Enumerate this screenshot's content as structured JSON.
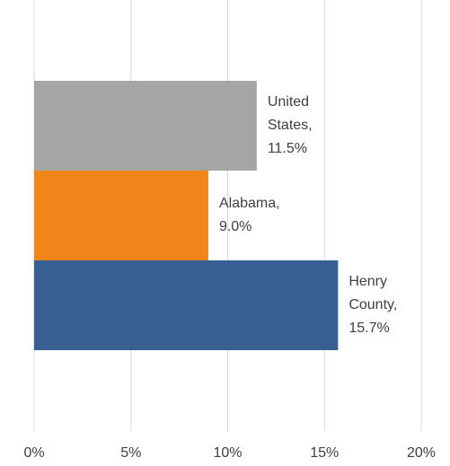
{
  "chart_data": {
    "type": "bar",
    "orientation": "horizontal",
    "categories": [
      "United States",
      "Alabama",
      "Henry County"
    ],
    "values": [
      11.5,
      9.0,
      15.7
    ],
    "value_labels": [
      "United States, 11.5%",
      "Alabama, 9.0%",
      "Henry County, 15.7%"
    ],
    "colors": [
      "#a5a5a5",
      "#f0861a",
      "#375f91"
    ],
    "xlim": [
      0,
      20
    ],
    "xticks": [
      {
        "value": 0,
        "label": "0%"
      },
      {
        "value": 5,
        "label": "5%"
      },
      {
        "value": 10,
        "label": "10%"
      },
      {
        "value": 15,
        "label": "15%"
      },
      {
        "value": 20,
        "label": "20%"
      }
    ],
    "grid": true
  }
}
